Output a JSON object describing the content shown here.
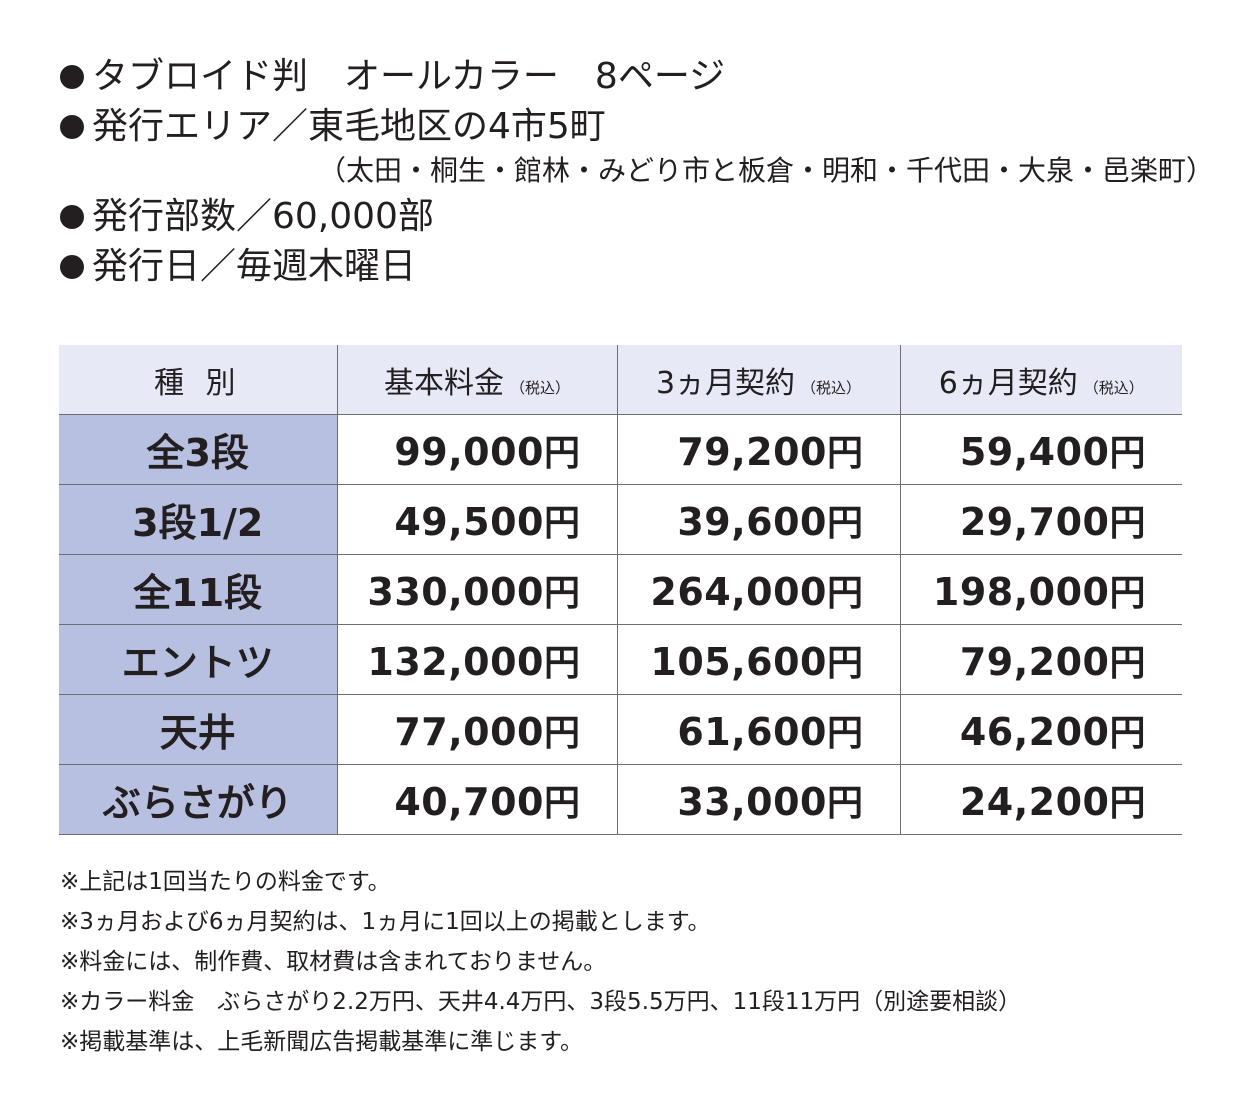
{
  "info": {
    "lines": [
      "タブロイド判　オールカラー　8ページ",
      "発行エリア／東毛地区の4市5町",
      "発行部数／60,000部",
      "発行日／毎週木曜日"
    ],
    "area_detail": "（太田・桐生・館林・みどり市と板倉・明和・千代田・大泉・邑楽町）"
  },
  "table": {
    "headers": [
      "種 別",
      "基本料金",
      "3ヵ月契約",
      "6ヵ月契約"
    ],
    "tax_note": "（税込）",
    "currency": "円",
    "rows": [
      {
        "type": "全3段",
        "base": "99,000",
        "m3": "79,200",
        "m6": "59,400"
      },
      {
        "type": "3段1/2",
        "base": "49,500",
        "m3": "39,600",
        "m6": "29,700"
      },
      {
        "type": "全11段",
        "base": "330,000",
        "m3": "264,000",
        "m6": "198,000"
      },
      {
        "type": "エントツ",
        "base": "132,000",
        "m3": "105,600",
        "m6": "79,200"
      },
      {
        "type": "天井",
        "base": "77,000",
        "m3": "61,600",
        "m6": "46,200"
      },
      {
        "type": "ぶらさがり",
        "base": "40,700",
        "m3": "33,000",
        "m6": "24,200"
      }
    ]
  },
  "notes": [
    "※上記は1回当たりの料金です。",
    "※3ヵ月および6ヵ月契約は、1ヵ月に1回以上の掲載とします。",
    "※料金には、制作費、取材費は含まれておりません。",
    "※カラー料金　ぶらさがり2.2万円、天井4.4万円、3段5.5万円、11段11万円（別途要相談）",
    "※掲載基準は、上毛新聞広告掲載基準に準じます。"
  ],
  "colors": {
    "header_bg": "#e8e9f6",
    "type_col_bg": "#b7c0e1",
    "text": "#231f20",
    "rule": "#6d6e71"
  }
}
